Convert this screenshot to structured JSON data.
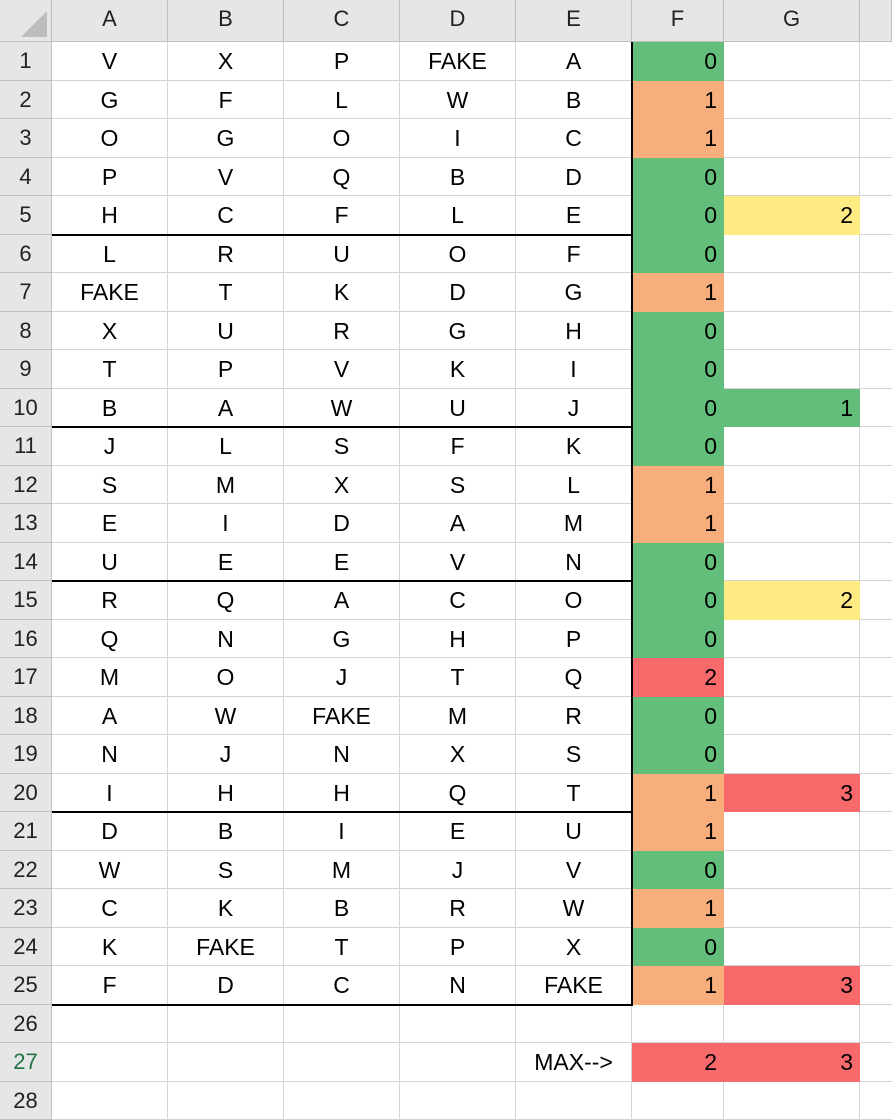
{
  "columns": [
    "A",
    "B",
    "C",
    "D",
    "E",
    "F",
    "G"
  ],
  "rows": [
    {
      "num": "1",
      "cells": [
        "V",
        "X",
        "P",
        "FAKE",
        "A"
      ],
      "f": "0",
      "g": ""
    },
    {
      "num": "2",
      "cells": [
        "G",
        "F",
        "L",
        "W",
        "B"
      ],
      "f": "1",
      "g": ""
    },
    {
      "num": "3",
      "cells": [
        "O",
        "G",
        "O",
        "I",
        "C"
      ],
      "f": "1",
      "g": ""
    },
    {
      "num": "4",
      "cells": [
        "P",
        "V",
        "Q",
        "B",
        "D"
      ],
      "f": "0",
      "g": ""
    },
    {
      "num": "5",
      "cells": [
        "H",
        "C",
        "F",
        "L",
        "E"
      ],
      "f": "0",
      "g": "2"
    },
    {
      "num": "6",
      "cells": [
        "L",
        "R",
        "U",
        "O",
        "F"
      ],
      "f": "0",
      "g": ""
    },
    {
      "num": "7",
      "cells": [
        "FAKE",
        "T",
        "K",
        "D",
        "G"
      ],
      "f": "1",
      "g": ""
    },
    {
      "num": "8",
      "cells": [
        "X",
        "U",
        "R",
        "G",
        "H"
      ],
      "f": "0",
      "g": ""
    },
    {
      "num": "9",
      "cells": [
        "T",
        "P",
        "V",
        "K",
        "I"
      ],
      "f": "0",
      "g": ""
    },
    {
      "num": "10",
      "cells": [
        "B",
        "A",
        "W",
        "U",
        "J"
      ],
      "f": "0",
      "g": "1"
    },
    {
      "num": "11",
      "cells": [
        "J",
        "L",
        "S",
        "F",
        "K"
      ],
      "f": "0",
      "g": ""
    },
    {
      "num": "12",
      "cells": [
        "S",
        "M",
        "X",
        "S",
        "L"
      ],
      "f": "1",
      "g": ""
    },
    {
      "num": "13",
      "cells": [
        "E",
        "I",
        "D",
        "A",
        "M"
      ],
      "f": "1",
      "g": ""
    },
    {
      "num": "14",
      "cells": [
        "U",
        "E",
        "E",
        "V",
        "N"
      ],
      "f": "0",
      "g": ""
    },
    {
      "num": "15",
      "cells": [
        "R",
        "Q",
        "A",
        "C",
        "O"
      ],
      "f": "0",
      "g": "2"
    },
    {
      "num": "16",
      "cells": [
        "Q",
        "N",
        "G",
        "H",
        "P"
      ],
      "f": "0",
      "g": ""
    },
    {
      "num": "17",
      "cells": [
        "M",
        "O",
        "J",
        "T",
        "Q"
      ],
      "f": "2",
      "g": ""
    },
    {
      "num": "18",
      "cells": [
        "A",
        "W",
        "FAKE",
        "M",
        "R"
      ],
      "f": "0",
      "g": ""
    },
    {
      "num": "19",
      "cells": [
        "N",
        "J",
        "N",
        "X",
        "S"
      ],
      "f": "0",
      "g": ""
    },
    {
      "num": "20",
      "cells": [
        "I",
        "H",
        "H",
        "Q",
        "T"
      ],
      "f": "1",
      "g": "3"
    },
    {
      "num": "21",
      "cells": [
        "D",
        "B",
        "I",
        "E",
        "U"
      ],
      "f": "1",
      "g": ""
    },
    {
      "num": "22",
      "cells": [
        "W",
        "S",
        "M",
        "J",
        "V"
      ],
      "f": "0",
      "g": ""
    },
    {
      "num": "23",
      "cells": [
        "C",
        "K",
        "B",
        "R",
        "W"
      ],
      "f": "1",
      "g": ""
    },
    {
      "num": "24",
      "cells": [
        "K",
        "FAKE",
        "T",
        "P",
        "X"
      ],
      "f": "0",
      "g": ""
    },
    {
      "num": "25",
      "cells": [
        "F",
        "D",
        "C",
        "N",
        "FAKE"
      ],
      "f": "1",
      "g": "3"
    },
    {
      "num": "26",
      "cells": [
        "",
        "",
        "",
        "",
        ""
      ],
      "f": "",
      "g": ""
    },
    {
      "num": "27",
      "cells": [
        "",
        "",
        "",
        "",
        "MAX-->"
      ],
      "f": "2",
      "g": "3"
    },
    {
      "num": "28",
      "cells": [
        "",
        "",
        "",
        "",
        ""
      ],
      "f": "",
      "g": ""
    }
  ],
  "colors": {
    "f": [
      "#63be7b",
      "#f8ad7c",
      "#f8ad7c",
      "#63be7b",
      "#63be7b",
      "#63be7b",
      "#f8ad7c",
      "#63be7b",
      "#63be7b",
      "#63be7b",
      "#63be7b",
      "#f8ad7c",
      "#f8ad7c",
      "#63be7b",
      "#63be7b",
      "#63be7b",
      "#f8696b",
      "#63be7b",
      "#63be7b",
      "#f8ad7c",
      "#f8ad7c",
      "#63be7b",
      "#f8ad7c",
      "#63be7b",
      "#f8ad7c",
      "",
      "#f8696b",
      ""
    ],
    "g": [
      "",
      "",
      "",
      "",
      "#ffeb84",
      "",
      "",
      "",
      "",
      "#63be7b",
      "",
      "",
      "",
      "",
      "#ffeb84",
      "",
      "",
      "",
      "",
      "#f8696b",
      "",
      "",
      "",
      "",
      "#f8696b",
      "",
      "#f8696b",
      ""
    ]
  },
  "selected_row": "27"
}
